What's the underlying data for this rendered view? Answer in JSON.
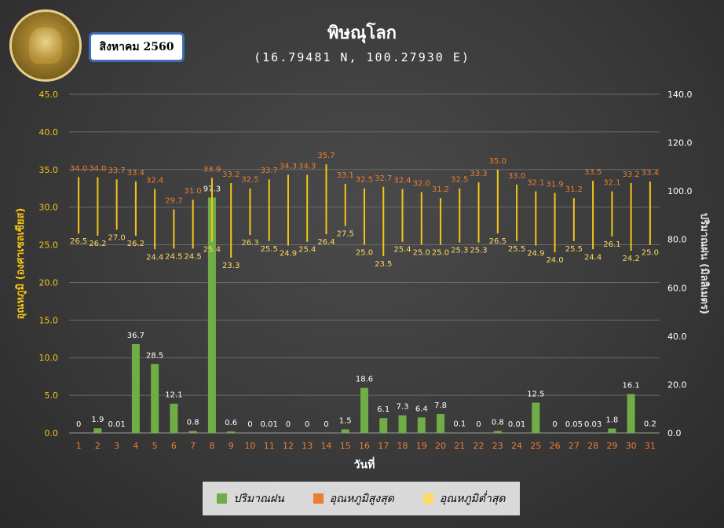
{
  "header": {
    "title": "พิษณุโลก",
    "coordinates": "(16.79481 N, 100.27930 E)",
    "month_label": "สิงหาคม 2560",
    "logo_icon": "tmd-seal-icon"
  },
  "legend": {
    "rain_label": "ปริมาณฝน",
    "tmax_label": "อุณหภูมิสูงสุด",
    "tmin_label": "อุณหภูมิต่ำสุด"
  },
  "colors": {
    "rain": "#70ad47",
    "tmax": "#ed7d31",
    "tmin": "#ffd966",
    "temp_bar": "#f5c518",
    "tmax_label": "#ed7d31",
    "tmin_label": "#ffd966",
    "rain_label": "#ffffff",
    "x_tick": "#ed7d31",
    "y_left_tick": "#f5c518",
    "y_right_tick": "#ffffff",
    "grid": "#6a6a6a"
  },
  "chart_data": {
    "type": "bar",
    "xlabel": "วันที่",
    "ylabel_left": "อุณหภูมิ (องศาเซลเซียส)",
    "ylabel_right": "ปริมาณฝน (มิลลิเมตร)",
    "ylim_left": [
      0,
      45
    ],
    "ylim_right": [
      0,
      140
    ],
    "yticks_left": [
      "0.0",
      "5.0",
      "10.0",
      "15.0",
      "20.0",
      "25.0",
      "30.0",
      "35.0",
      "40.0",
      "45.0"
    ],
    "yticks_right": [
      "0.0",
      "20.0",
      "40.0",
      "60.0",
      "80.0",
      "100.0",
      "120.0",
      "140.0"
    ],
    "grid": true,
    "legend_position": "bottom",
    "categories": [
      "1",
      "2",
      "3",
      "4",
      "5",
      "6",
      "7",
      "8",
      "9",
      "10",
      "11",
      "12",
      "13",
      "14",
      "15",
      "16",
      "17",
      "18",
      "19",
      "20",
      "21",
      "22",
      "23",
      "24",
      "25",
      "26",
      "27",
      "28",
      "29",
      "30",
      "31"
    ],
    "series": [
      {
        "name": "ปริมาณฝน",
        "axis": "right",
        "values": [
          0,
          1.9,
          0.01,
          36.7,
          28.5,
          12.1,
          0.8,
          97.3,
          0.6,
          0,
          0.01,
          0,
          0,
          0,
          1.5,
          18.6,
          6.1,
          7.3,
          6.4,
          7.8,
          0.1,
          0,
          0.8,
          0.01,
          12.5,
          0,
          0.05,
          0.03,
          1.8,
          16.1,
          0.2
        ],
        "labels": [
          "0",
          "1.9",
          "0.01",
          "36.7",
          "28.5",
          "12.1",
          "0.8",
          "97.3",
          "0.6",
          "0",
          "0.01",
          "0",
          "0",
          "0",
          "1.5",
          "18.6",
          "6.1",
          "7.3",
          "6.4",
          "7.8",
          "0.1",
          "0",
          "0.8",
          "0.01",
          "12.5",
          "0",
          "0.05",
          "0.03",
          "1.8",
          "16.1",
          "0.2"
        ]
      },
      {
        "name": "อุณหภูมิสูงสุด",
        "axis": "left",
        "values": [
          34.0,
          34.0,
          33.7,
          33.4,
          32.4,
          29.7,
          31.0,
          33.9,
          33.2,
          32.5,
          33.7,
          34.3,
          34.3,
          35.7,
          33.1,
          32.5,
          32.7,
          32.4,
          32.0,
          31.2,
          32.5,
          33.3,
          35.0,
          33.0,
          32.1,
          31.9,
          31.2,
          33.5,
          32.1,
          33.2,
          33.4
        ],
        "labels": [
          "34.0",
          "34.0",
          "33.7",
          "33.4",
          "32.4",
          "29.7",
          "31.0",
          "33.9",
          "33.2",
          "32.5",
          "33.7",
          "34.3",
          "34.3",
          "35.7",
          "33.1",
          "32.5",
          "32.7",
          "32.4",
          "32.0",
          "31.2",
          "32.5",
          "33.3",
          "35.0",
          "33.0",
          "32.1",
          "31.9",
          "31.2",
          "33.5",
          "32.1",
          "33.2",
          "33.4"
        ]
      },
      {
        "name": "อุณหภูมิต่ำสุด",
        "axis": "left",
        "values": [
          26.5,
          26.2,
          27.0,
          26.2,
          24.4,
          24.5,
          24.5,
          25.4,
          23.3,
          26.3,
          25.5,
          24.9,
          25.4,
          26.4,
          27.5,
          25.0,
          23.5,
          25.4,
          25.0,
          25.0,
          25.3,
          25.3,
          26.5,
          25.5,
          24.9,
          24.0,
          25.5,
          24.4,
          26.1,
          24.2,
          25.0
        ],
        "labels": [
          "26.5",
          "26.2",
          "27.0",
          "26.2",
          "24.4",
          "24.5",
          "24.5",
          "25.4",
          "23.3",
          "26.3",
          "25.5",
          "24.9",
          "25.4",
          "26.4",
          "27.5",
          "25.0",
          "23.5",
          "25.4",
          "25.0",
          "25.0",
          "25.3",
          "25.3",
          "26.5",
          "25.5",
          "24.9",
          "24.0",
          "25.5",
          "24.4",
          "26.1",
          "24.2",
          "25.0"
        ]
      }
    ]
  }
}
